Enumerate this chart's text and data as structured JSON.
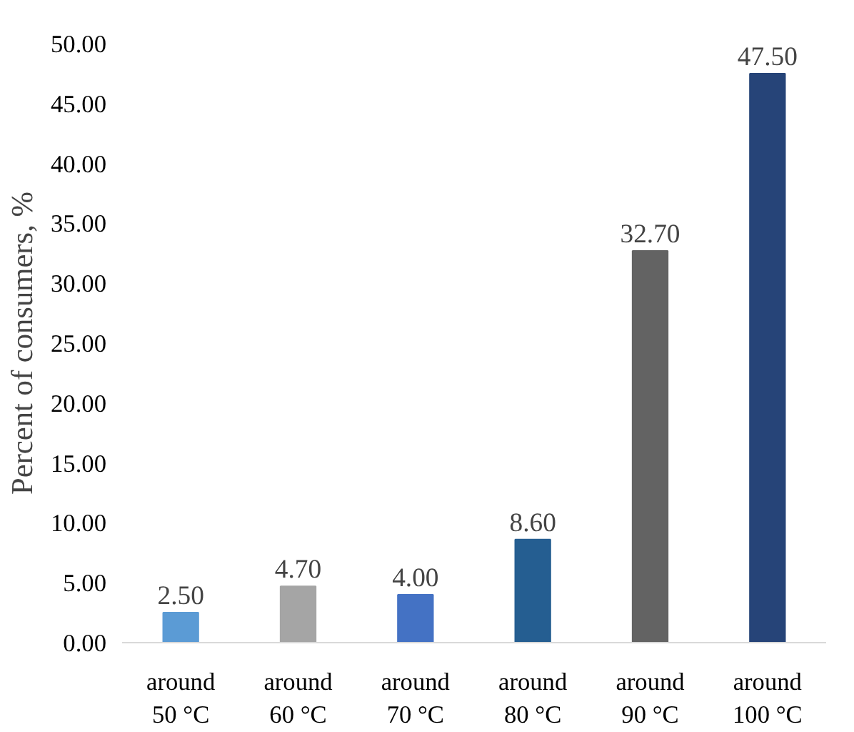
{
  "chart_data": {
    "type": "bar",
    "ylabel": "Percent of consumers, %",
    "categories": [
      "around 50 °C",
      "around 60 °C",
      "around 70 °C",
      "around 80 °C",
      "around 90 °C",
      "around 100 °C"
    ],
    "values": [
      2.5,
      4.7,
      4.0,
      8.6,
      32.7,
      47.5
    ],
    "colors": [
      "#5b9bd5",
      "#a5a5a5",
      "#4472c4",
      "#255e91",
      "#636363",
      "#264478"
    ],
    "value_labels": [
      "2.50",
      "4.70",
      "4.00",
      "8.60",
      "32.70",
      "47.50"
    ],
    "ylim": [
      0,
      50
    ],
    "yticks": [
      {
        "value": 0,
        "label": "0.00"
      },
      {
        "value": 5,
        "label": "5.00"
      },
      {
        "value": 10,
        "label": "10.00"
      },
      {
        "value": 15,
        "label": "15.00"
      },
      {
        "value": 20,
        "label": "20.00"
      },
      {
        "value": 25,
        "label": "25.00"
      },
      {
        "value": 30,
        "label": "30.00"
      },
      {
        "value": 35,
        "label": "35.00"
      },
      {
        "value": 40,
        "label": "40.00"
      },
      {
        "value": 45,
        "label": "45.00"
      },
      {
        "value": 50,
        "label": "50.00"
      }
    ],
    "grid": false
  }
}
